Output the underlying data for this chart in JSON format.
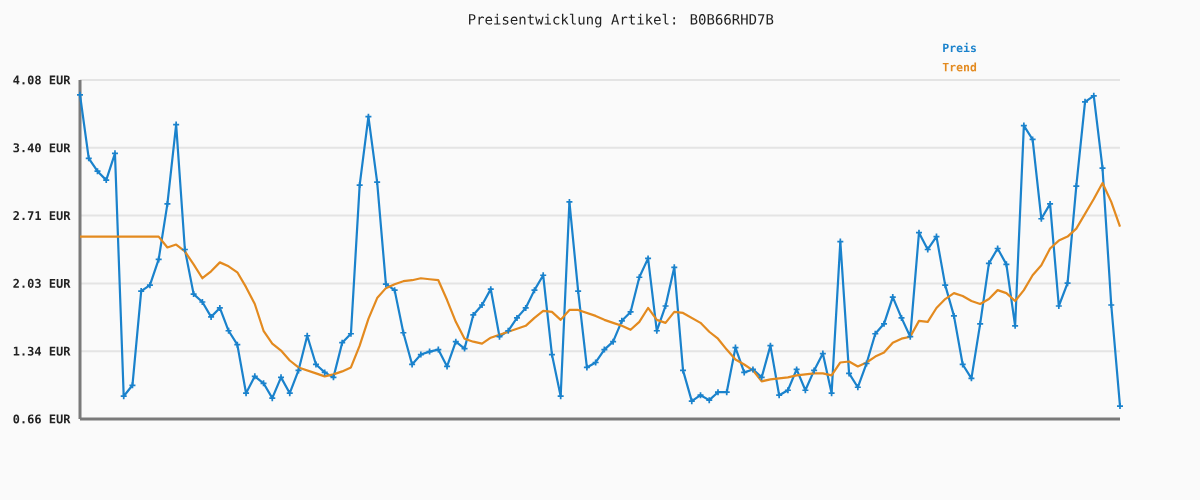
{
  "chart_data": {
    "type": "line",
    "title": "Preisentwicklung Artikel: B0B66RHD7B",
    "categories": [
      null,
      null,
      null,
      null,
      null,
      null,
      null,
      null,
      null,
      null,
      null,
      null,
      null,
      null,
      null,
      null,
      null,
      null,
      null,
      null,
      null,
      null,
      null,
      null,
      null,
      null,
      null,
      null,
      null,
      null,
      null,
      null,
      null,
      null,
      null,
      null,
      null,
      null,
      null,
      null,
      null,
      null,
      null,
      null,
      null,
      null,
      null,
      null,
      null,
      null,
      null,
      null,
      null,
      null,
      null,
      null,
      null,
      null,
      null,
      null,
      null,
      null,
      null,
      null,
      null,
      null,
      null,
      null,
      null,
      null,
      null,
      null,
      null,
      null,
      null,
      null,
      null,
      null,
      null,
      null,
      null,
      null,
      null,
      null,
      null,
      null,
      null,
      null,
      null,
      null,
      null,
      null,
      null,
      null,
      null,
      null,
      null,
      null,
      null,
      null,
      null,
      null,
      null,
      null,
      null,
      null,
      null,
      null,
      null,
      null,
      null,
      null,
      null,
      null,
      null,
      null,
      null,
      null,
      null,
      null
    ],
    "series": [
      {
        "name": "Preis",
        "color": "#1a82cc",
        "marker": "cross",
        "values": [
          3.93,
          3.29,
          3.16,
          3.07,
          3.34,
          0.89,
          1.0,
          1.95,
          2.01,
          2.27,
          2.83,
          3.63,
          2.37,
          1.92,
          1.84,
          1.69,
          1.78,
          1.55,
          1.41,
          0.92,
          1.09,
          1.02,
          0.87,
          1.08,
          0.92,
          1.15,
          1.5,
          1.21,
          1.13,
          1.08,
          1.43,
          1.52,
          3.02,
          3.71,
          3.05,
          2.02,
          1.96,
          1.53,
          1.21,
          1.31,
          1.34,
          1.36,
          1.19,
          1.44,
          1.37,
          1.71,
          1.81,
          1.97,
          1.49,
          1.55,
          1.68,
          1.78,
          1.96,
          2.11,
          1.31,
          0.89,
          2.85,
          1.95,
          1.18,
          1.23,
          1.36,
          1.44,
          1.65,
          1.74,
          2.09,
          2.28,
          1.55,
          1.8,
          2.19,
          1.15,
          0.84,
          0.9,
          0.85,
          0.93,
          0.93,
          1.38,
          1.13,
          1.16,
          1.08,
          1.4,
          0.9,
          0.95,
          1.16,
          0.95,
          1.15,
          1.32,
          0.92,
          2.45,
          1.12,
          0.98,
          1.22,
          1.52,
          1.62,
          1.89,
          1.68,
          1.49,
          2.54,
          2.37,
          2.5,
          2.01,
          1.7,
          1.21,
          1.07,
          1.62,
          2.23,
          2.38,
          2.22,
          1.6,
          3.62,
          3.48,
          2.68,
          2.83,
          1.8,
          2.03,
          3.01,
          3.86,
          3.92,
          3.19,
          1.81,
          0.79
        ]
      },
      {
        "name": "Trend",
        "color": "#e38a1f",
        "values": [
          2.5,
          2.5,
          2.5,
          2.5,
          2.5,
          2.5,
          2.5,
          2.5,
          2.5,
          2.5,
          2.39,
          2.42,
          2.35,
          2.22,
          2.08,
          2.15,
          2.24,
          2.2,
          2.14,
          1.99,
          1.82,
          1.55,
          1.42,
          1.35,
          1.25,
          1.18,
          1.15,
          1.12,
          1.09,
          1.11,
          1.14,
          1.18,
          1.4,
          1.67,
          1.88,
          1.98,
          2.02,
          2.05,
          2.06,
          2.08,
          2.07,
          2.06,
          1.86,
          1.64,
          1.47,
          1.44,
          1.42,
          1.48,
          1.51,
          1.54,
          1.57,
          1.6,
          1.68,
          1.75,
          1.74,
          1.66,
          1.76,
          1.76,
          1.73,
          1.7,
          1.66,
          1.63,
          1.6,
          1.56,
          1.64,
          1.78,
          1.66,
          1.63,
          1.74,
          1.73,
          1.68,
          1.63,
          1.54,
          1.47,
          1.36,
          1.26,
          1.21,
          1.15,
          1.04,
          1.06,
          1.07,
          1.08,
          1.1,
          1.11,
          1.12,
          1.12,
          1.1,
          1.23,
          1.24,
          1.19,
          1.23,
          1.29,
          1.33,
          1.43,
          1.47,
          1.49,
          1.65,
          1.64,
          1.78,
          1.87,
          1.93,
          1.9,
          1.85,
          1.82,
          1.87,
          1.96,
          1.93,
          1.85,
          1.96,
          2.11,
          2.21,
          2.38,
          2.46,
          2.5,
          2.58,
          2.73,
          2.88,
          3.04,
          2.85,
          2.6
        ]
      }
    ],
    "ylim": [
      0.66,
      4.08
    ],
    "yticks": [
      {
        "value": 0.66,
        "label": "0.66 EUR"
      },
      {
        "value": 1.344,
        "label": "1.34 EUR"
      },
      {
        "value": 2.028,
        "label": "2.03 EUR"
      },
      {
        "value": 2.712,
        "label": "2.71 EUR"
      },
      {
        "value": 3.396,
        "label": "3.40 EUR"
      },
      {
        "value": 4.08,
        "label": "4.08 EUR"
      }
    ],
    "grid": "y",
    "legend": "top right"
  }
}
